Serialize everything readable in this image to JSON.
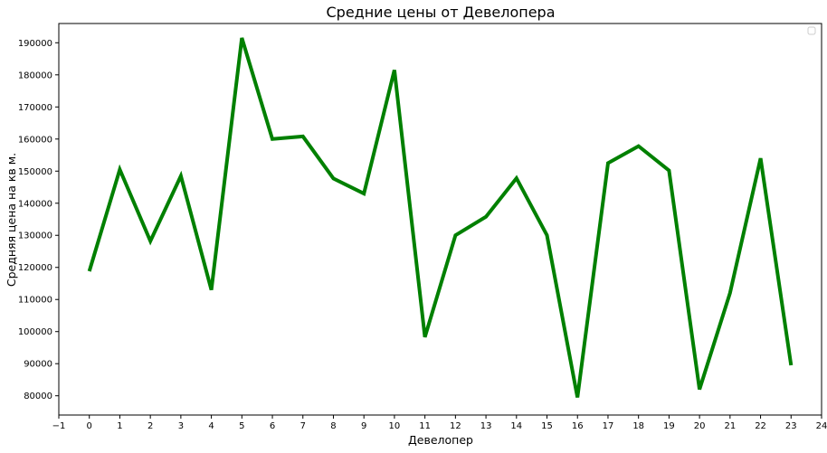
{
  "chart_data": {
    "type": "line",
    "title": "Средние цены от Девелопера",
    "xlabel": "Девелопер",
    "ylabel": "Средняя цена на кв м.",
    "xlim": [
      -1,
      24
    ],
    "ylim": [
      74000,
      196000
    ],
    "xticks": [
      "−1",
      "0",
      "1",
      "2",
      "3",
      "4",
      "5",
      "6",
      "7",
      "8",
      "9",
      "10",
      "11",
      "12",
      "13",
      "14",
      "15",
      "16",
      "17",
      "18",
      "19",
      "20",
      "21",
      "22",
      "23",
      "24"
    ],
    "yticks": [
      "80000",
      "90000",
      "100000",
      "110000",
      "120000",
      "130000",
      "140000",
      "150000",
      "160000",
      "170000",
      "180000",
      "190000"
    ],
    "grid": false,
    "legend": "top-right",
    "series": [
      {
        "color": "#008000",
        "x": [
          0,
          1,
          2,
          3,
          4,
          5,
          6,
          7,
          8,
          9,
          10,
          11,
          12,
          13,
          14,
          15,
          16,
          17,
          18,
          19,
          20,
          21,
          22,
          23
        ],
        "values": [
          118800,
          150500,
          128200,
          148500,
          113000,
          191500,
          160000,
          160800,
          147700,
          143000,
          181500,
          98300,
          130000,
          135800,
          147800,
          130000,
          79500,
          152500,
          157800,
          150200,
          82000,
          112000,
          154000,
          89500
        ]
      }
    ]
  }
}
